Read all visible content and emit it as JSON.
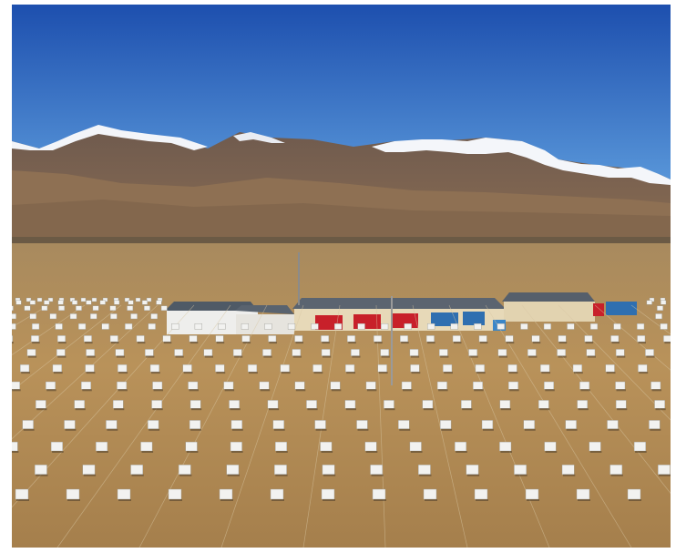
{
  "photo": {
    "subject": "array-field",
    "colors": {
      "sky_top": "#1f56b8",
      "sky_bottom": "#4f8fd6",
      "snow": "#f4f6fa",
      "mountain": "#7a6555",
      "mountain_dark": "#5e4a3f",
      "plain": "#b8915c",
      "plain_dark": "#9d7a48",
      "detector": "#f2f2f0",
      "roof": "#5b6470",
      "wall": "#e8dcc0",
      "container_red": "#c8202a",
      "container_blue": "#2f6fb0"
    }
  }
}
